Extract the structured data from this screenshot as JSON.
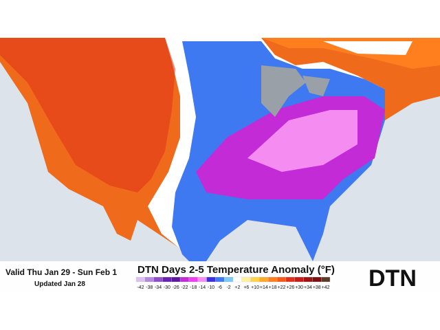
{
  "header": {
    "valid": "Valid Thu Jan 29 - Sun Feb 1",
    "updated": "Updated Jan 28",
    "title": "DTN Days 2-5 Temperature Anomaly (°F)",
    "logo": "DTN"
  },
  "legend": {
    "labels": [
      "-42",
      "-38",
      "-34",
      "-30",
      "-26",
      "-22",
      "-18",
      "-14",
      "-10",
      "-6",
      "-2",
      "+2",
      "+6",
      "+10",
      "+14",
      "+18",
      "+22",
      "+26",
      "+30",
      "+34",
      "+38",
      "+42"
    ],
    "colors": [
      "#d9c2ec",
      "#b58ade",
      "#8e4fc9",
      "#6a22b0",
      "#5a1a9e",
      "#c22bd6",
      "#ee40ee",
      "#f58cf2",
      "#3b2fe0",
      "#3f79f2",
      "#7cc8f7",
      "#ffffff",
      "#fff1a0",
      "#ffd24a",
      "#ffa82a",
      "#ff7f1f",
      "#f45a1a",
      "#e0321a",
      "#c41d1a",
      "#9c1414",
      "#7a1010",
      "#5a3a2a"
    ]
  }
}
